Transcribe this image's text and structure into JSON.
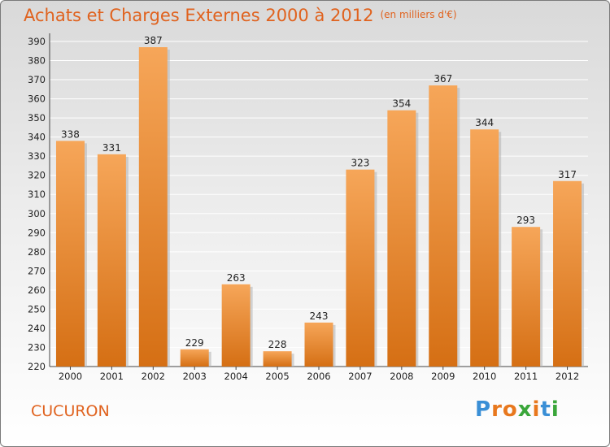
{
  "title": "Achats et Charges Externes 2000 à 2012",
  "unit": "(en milliers d'€)",
  "location": "CUCURON",
  "logo": {
    "letters": [
      "P",
      "r",
      "o",
      "x",
      "i",
      "t",
      "i"
    ],
    "colors": [
      "#3a8fd6",
      "#e8781e",
      "#e8781e",
      "#3aa63a",
      "#e8781e",
      "#3a8fd6",
      "#3aa63a"
    ]
  },
  "colors": {
    "bar": "#f08a2c",
    "title": "#e0621e",
    "grid": "#ffffff"
  },
  "chart_data": {
    "type": "bar",
    "categories": [
      "2000",
      "2001",
      "2002",
      "2003",
      "2004",
      "2005",
      "2006",
      "2007",
      "2008",
      "2009",
      "2010",
      "2011",
      "2012"
    ],
    "values": [
      338,
      331,
      387,
      229,
      263,
      228,
      243,
      323,
      354,
      367,
      344,
      293,
      317
    ],
    "yticks": [
      220,
      230,
      240,
      250,
      260,
      270,
      280,
      290,
      300,
      310,
      320,
      330,
      340,
      350,
      360,
      370,
      380,
      390
    ],
    "ylim": [
      220,
      390
    ],
    "grid": true,
    "xlabel": "",
    "ylabel": ""
  }
}
